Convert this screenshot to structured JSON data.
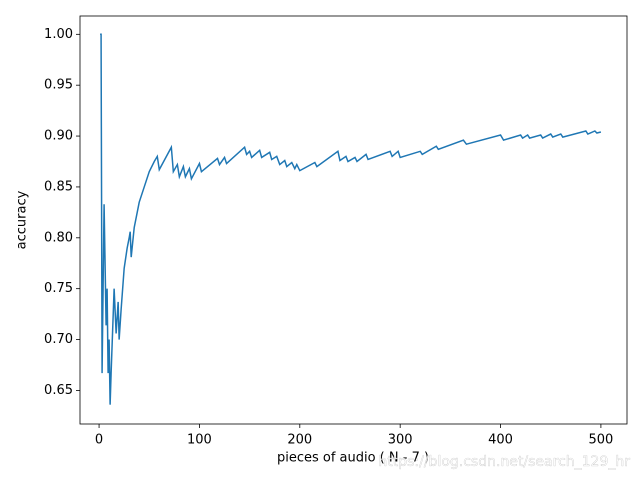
{
  "chart_data": {
    "type": "line",
    "x_label": "pieces of audio ( N - 7 )",
    "y_label": "accuracy",
    "annotation": "https://blog.csdn.net/search_129_hr",
    "xlim": [
      -19,
      526
    ],
    "ylim": [
      0.617,
      1.018
    ],
    "xticks": [
      0,
      100,
      200,
      300,
      400,
      500
    ],
    "yticks": [
      {
        "value": 1.0,
        "label": "1.00"
      },
      0.95,
      {
        "value": 0.9,
        "label": "0.90"
      },
      0.85,
      {
        "value": 0.8,
        "label": "0.80"
      },
      0.75,
      {
        "value": 0.7,
        "label": "0.70"
      },
      0.65
    ],
    "x": [
      1,
      2,
      3,
      5,
      7,
      8,
      9,
      10,
      11,
      12,
      15,
      17,
      19,
      20,
      22,
      25,
      28,
      30,
      31,
      32,
      35,
      40,
      45,
      50,
      55,
      58,
      60,
      72,
      74,
      78,
      80,
      84,
      86,
      90,
      92,
      100,
      102,
      118,
      120,
      125,
      127,
      145,
      147,
      150,
      152,
      160,
      162,
      170,
      172,
      177,
      180,
      185,
      187,
      192,
      195,
      197,
      200,
      215,
      217,
      238,
      240,
      246,
      248,
      255,
      257,
      266,
      268,
      290,
      292,
      298,
      300,
      320,
      322,
      336,
      338,
      363,
      366,
      400,
      403,
      420,
      422,
      427,
      429,
      440,
      442,
      450,
      452,
      460,
      462,
      485,
      487,
      494,
      496,
      500
    ],
    "series": [
      {
        "name": "accuracy",
        "color": "#1f77b4",
        "values": [
          1.0,
          1.0,
          0.667,
          0.833,
          0.714,
          0.75,
          0.667,
          0.7,
          0.636,
          0.667,
          0.75,
          0.706,
          0.737,
          0.7,
          0.73,
          0.77,
          0.79,
          0.8,
          0.806,
          0.781,
          0.81,
          0.835,
          0.85,
          0.865,
          0.875,
          0.88,
          0.867,
          0.889,
          0.865,
          0.872,
          0.86,
          0.87,
          0.86,
          0.868,
          0.858,
          0.873,
          0.865,
          0.878,
          0.872,
          0.879,
          0.873,
          0.889,
          0.882,
          0.885,
          0.879,
          0.886,
          0.879,
          0.884,
          0.877,
          0.88,
          0.872,
          0.876,
          0.87,
          0.874,
          0.868,
          0.872,
          0.866,
          0.874,
          0.87,
          0.885,
          0.876,
          0.88,
          0.875,
          0.879,
          0.875,
          0.882,
          0.877,
          0.885,
          0.88,
          0.885,
          0.879,
          0.885,
          0.882,
          0.89,
          0.887,
          0.896,
          0.892,
          0.901,
          0.896,
          0.901,
          0.898,
          0.901,
          0.898,
          0.901,
          0.898,
          0.902,
          0.899,
          0.902,
          0.899,
          0.905,
          0.902,
          0.905,
          0.903,
          0.904
        ]
      }
    ]
  }
}
